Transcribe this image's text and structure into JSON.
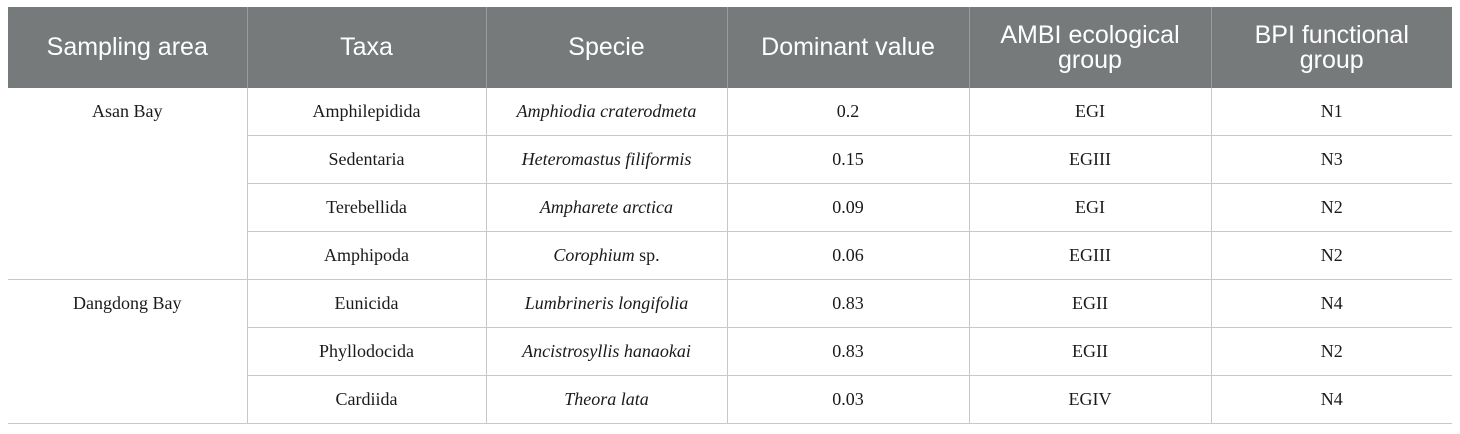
{
  "headers": {
    "sampling_area": "Sampling area",
    "taxa": "Taxa",
    "specie": "Specie",
    "dominant_value": "Dominant value",
    "ambi": "AMBI ecological group",
    "bpi": "BPI functional group"
  },
  "groups": [
    {
      "area": "Asan Bay",
      "rows": [
        {
          "taxa": "Amphilepidida",
          "specie": "Amphiodia craterodmeta",
          "specie_suffix": "",
          "dominant": "0.2",
          "ambi": "EGI",
          "bpi": "N1"
        },
        {
          "taxa": "Sedentaria",
          "specie": "Heteromastus filiformis",
          "specie_suffix": "",
          "dominant": "0.15",
          "ambi": "EGIII",
          "bpi": "N3"
        },
        {
          "taxa": "Terebellida",
          "specie": "Ampharete arctica",
          "specie_suffix": "",
          "dominant": "0.09",
          "ambi": "EGI",
          "bpi": "N2"
        },
        {
          "taxa": "Amphipoda",
          "specie": "Corophium",
          "specie_suffix": " sp.",
          "dominant": "0.06",
          "ambi": "EGIII",
          "bpi": "N2"
        }
      ]
    },
    {
      "area": "Dangdong Bay",
      "rows": [
        {
          "taxa": "Eunicida",
          "specie": "Lumbrineris longifolia",
          "specie_suffix": "",
          "dominant": "0.83",
          "ambi": "EGII",
          "bpi": "N4"
        },
        {
          "taxa": "Phyllodocida",
          "specie": "Ancistrosyllis hanaokai",
          "specie_suffix": "",
          "dominant": "0.83",
          "ambi": "EGII",
          "bpi": "N2"
        },
        {
          "taxa": "Cardiida",
          "specie": "Theora lata",
          "specie_suffix": "",
          "dominant": "0.03",
          "ambi": "EGIV",
          "bpi": "N4"
        }
      ]
    }
  ]
}
